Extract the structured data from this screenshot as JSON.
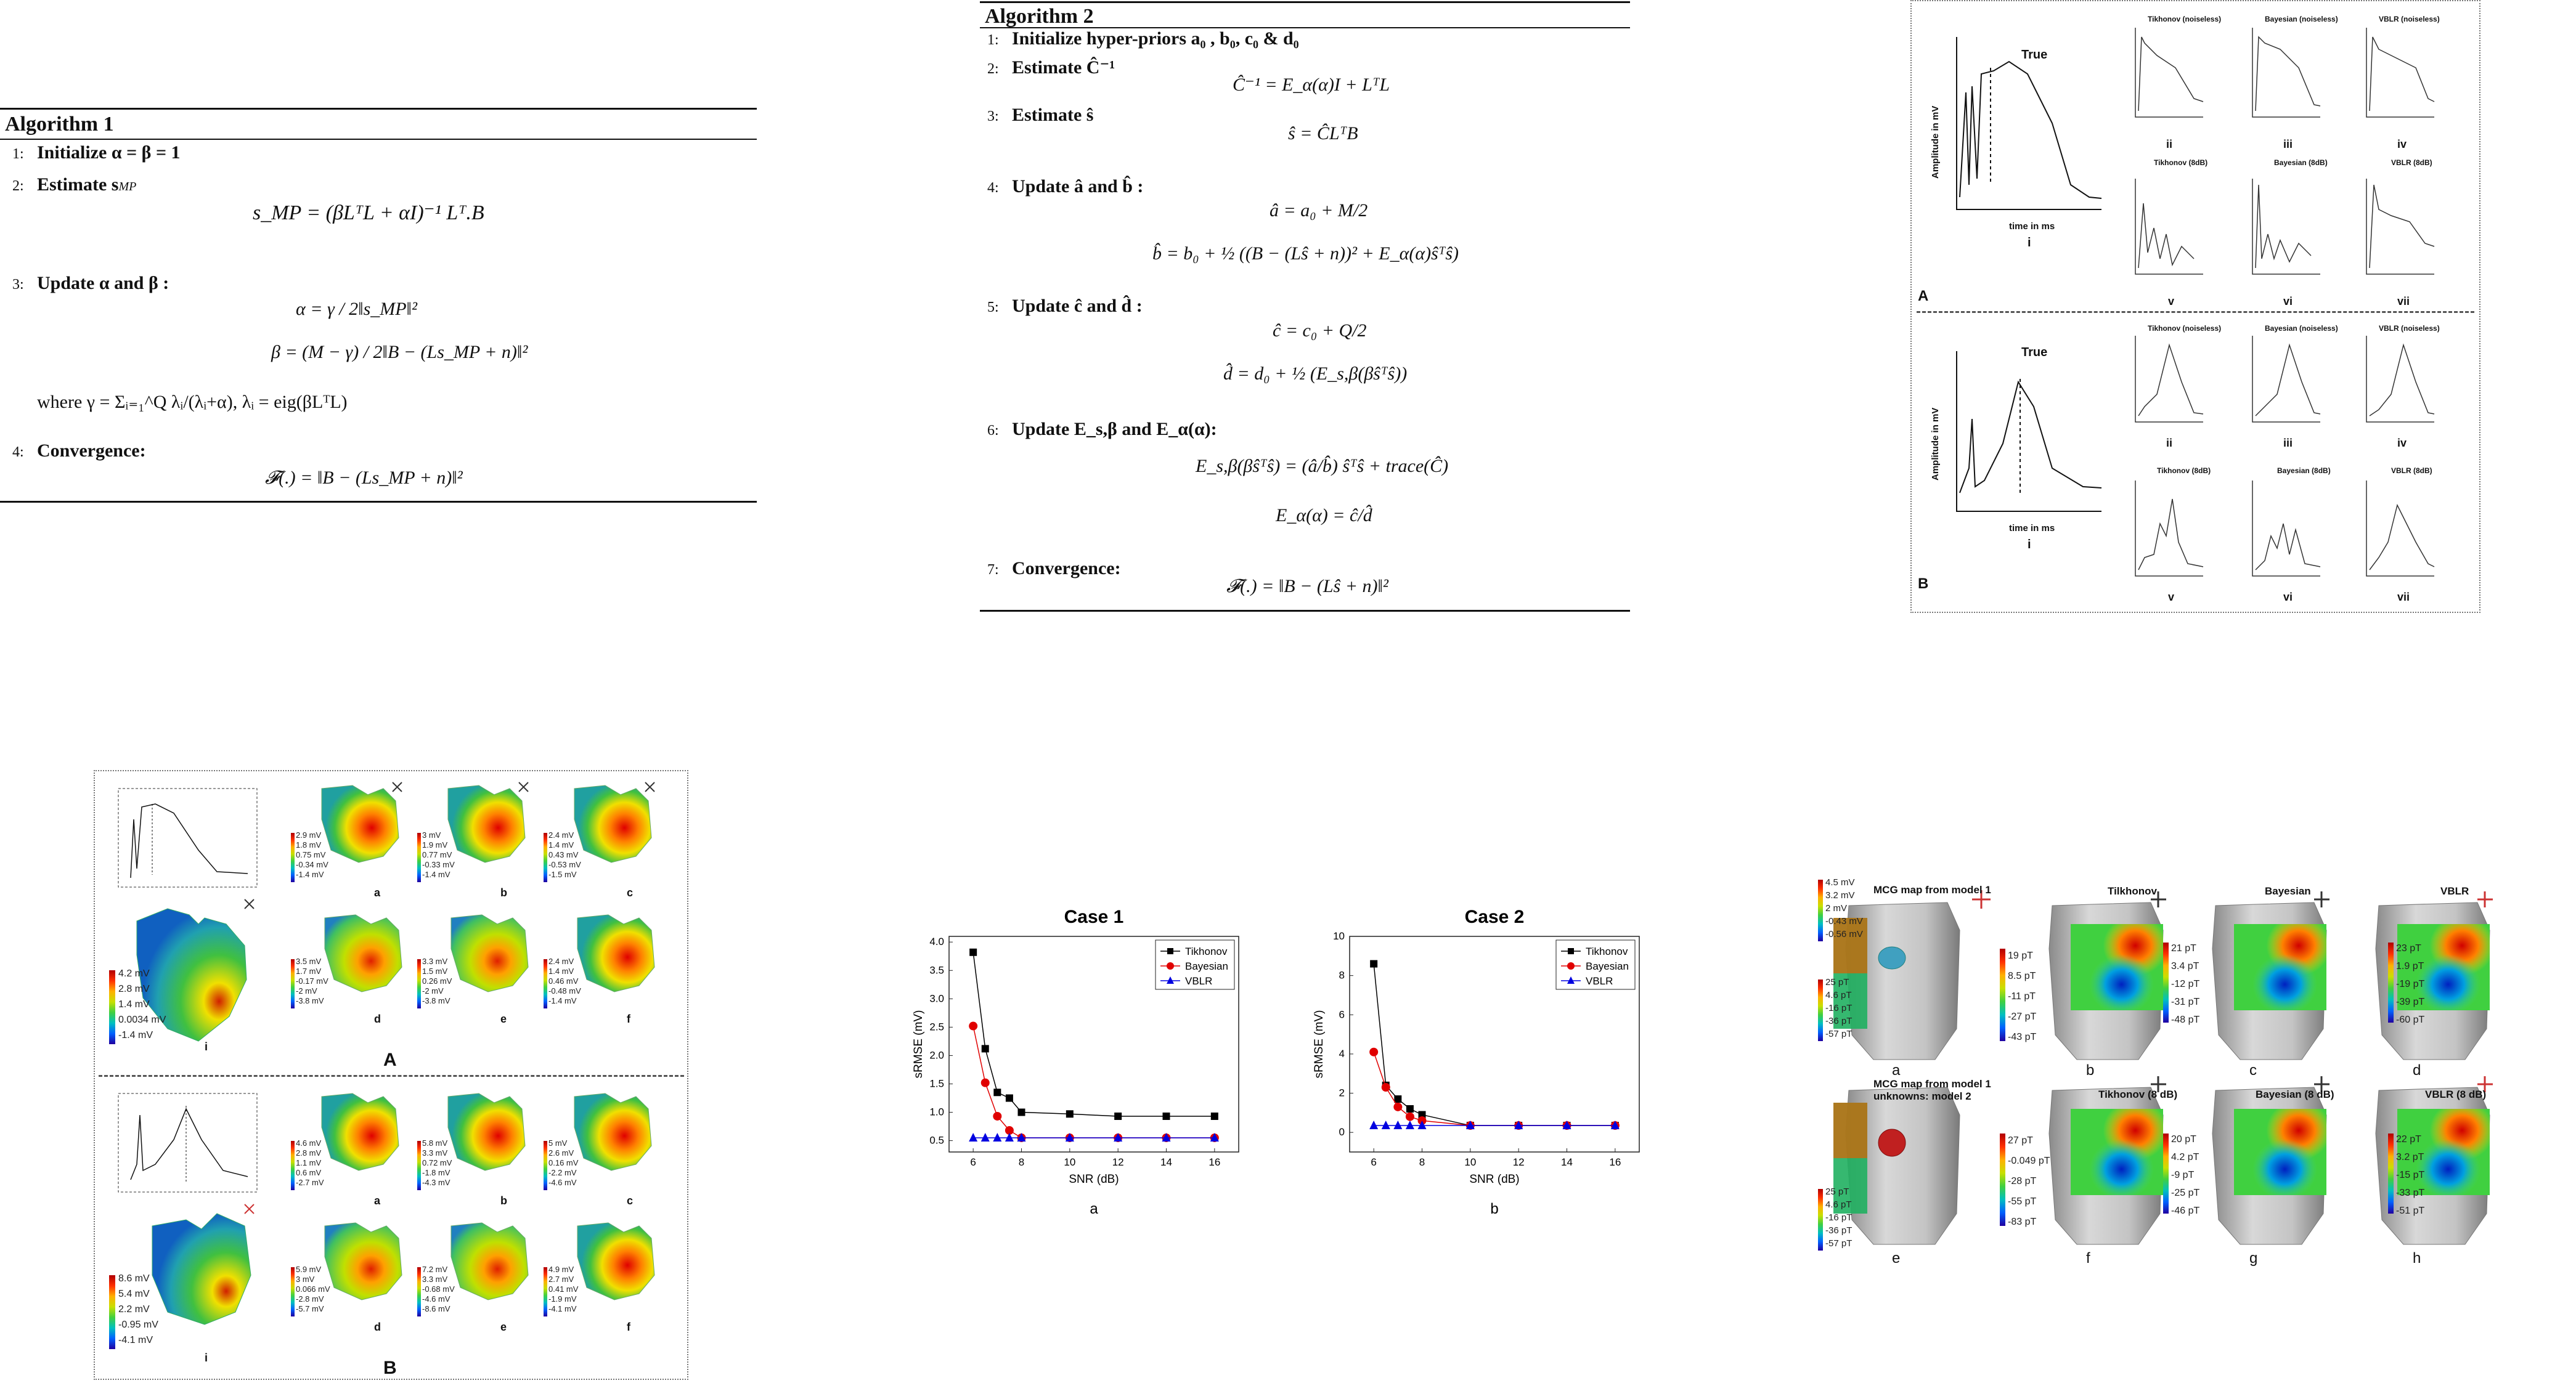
{
  "algo1": {
    "title": "Algorithm 1",
    "s1": "Initialize α = β = 1",
    "s2": "Estimate s",
    "s2sub": "MP",
    "eq2": "s_MP = (βLᵀL + αI)⁻¹ Lᵀ.B",
    "s3": "Update α and β :",
    "eq3a": "α = γ / 2‖s_MP‖²",
    "eq3b": "β = (M − γ) / 2‖B − (Ls_MP + n)‖²",
    "eq3c": "where γ = Σᵢ₌₁^Q λᵢ/(λᵢ+α), λᵢ = eig(βLᵀL)",
    "s4": "Convergence:",
    "eq4": "𝓕(.) = ‖B − (Ls_MP + n)‖²"
  },
  "algo2": {
    "title": "Algorithm 2",
    "s1": "Initialize hyper-priors a₀ , b₀, c₀ & d₀",
    "s2": "Estimate Ĉ⁻¹",
    "eq2": "Ĉ⁻¹ = E_α(α)I + LᵀL",
    "s3": "Estimate ŝ",
    "eq3": "ŝ = ĈLᵀB",
    "s4": "Update â and b̂ :",
    "eq4a": "â = a₀ + M/2",
    "eq4b": "b̂ = b₀ + ½ ((B − (Lŝ + n))² + E_α(α)ŝᵀŝ)",
    "s5": "Update ĉ and d̂ :",
    "eq5a": "ĉ = c₀ + Q/2",
    "eq5b": "d̂ = d₀ + ½ (E_s,β(βŝᵀŝ))",
    "s6": "Update E_s,β and E_α(α):",
    "eq6a": "E_s,β(βŝᵀŝ) = (â/b̂) ŝᵀŝ + trace(Ĉ)",
    "eq6b": "E_α(α) = ĉ/d̂",
    "s7": "Convergence:",
    "eq7": "𝓕(.) = ‖B − (Lŝ + n)‖²"
  },
  "waveform_fig": {
    "true_label": "True",
    "ylabel": "Amplitude in mV",
    "xlabel": "time in ms",
    "methods_row1": [
      "Tikhonov (noiseless)",
      "Bayesian (noiseless)",
      "VBLR (noiseless)"
    ],
    "methods_row2": [
      "Tikhonov (8dB)",
      "Bayesian (8dB)",
      "VBLR (8dB)"
    ],
    "roman": [
      "i",
      "ii",
      "iii",
      "iv",
      "v",
      "vi",
      "vii"
    ],
    "panel_A": "A",
    "panel_B": "B"
  },
  "heart_fig": {
    "letters": [
      "a",
      "b",
      "c",
      "d",
      "e",
      "f",
      "i"
    ],
    "panel_A": "A",
    "panel_B": "B",
    "A_i_scale": [
      "4.2 mV",
      "2.8 mV",
      "1.4 mV",
      "0.0034 mV",
      "-1.4 mV"
    ],
    "B_i_scale": [
      "8.6 mV",
      "5.4 mV",
      "2.2 mV",
      "-0.95 mV",
      "-4.1 mV"
    ],
    "A_scales": [
      [
        "2.9 mV",
        "1.8 mV",
        "0.75 mV",
        "-0.34 mV",
        "-1.4 mV"
      ],
      [
        "3 mV",
        "1.9 mV",
        "0.77 mV",
        "-0.33 mV",
        "-1.4 mV"
      ],
      [
        "2.4 mV",
        "1.4 mV",
        "0.43 mV",
        "-0.53 mV",
        "-1.5 mV"
      ],
      [
        "3.5 mV",
        "1.7 mV",
        "-0.17 mV",
        "-2 mV",
        "-3.8 mV"
      ],
      [
        "3.3 mV",
        "1.5 mV",
        "0.26 mV",
        "-2 mV",
        "-3.8 mV"
      ],
      [
        "2.4 mV",
        "1.4 mV",
        "0.46 mV",
        "-0.48 mV",
        "-1.4 mV"
      ]
    ],
    "B_scales": [
      [
        "4.6 mV",
        "2.8 mV",
        "1.1 mV",
        "0.6 mV",
        "-2.7 mV"
      ],
      [
        "5.8 mV",
        "3.3 mV",
        "0.72 mV",
        "-1.8 mV",
        "-4.3 mV"
      ],
      [
        "5 mV",
        "2.6 mV",
        "0.16 mV",
        "-2.2 mV",
        "-4.6 mV"
      ],
      [
        "5.9 mV",
        "3 mV",
        "0.066 mV",
        "-2.8 mV",
        "-5.7 mV"
      ],
      [
        "7.2 mV",
        "3.3 mV",
        "-0.68 mV",
        "-4.6 mV",
        "-8.6 mV"
      ],
      [
        "4.9 mV",
        "2.7 mV",
        "0.41 mV",
        "-1.9 mV",
        "-4.1 mV"
      ]
    ]
  },
  "chart_data": [
    {
      "type": "line",
      "title": "Case 1",
      "xlabel": "SNR (dB)",
      "ylabel": "sRMSE (mV)",
      "panel": "a",
      "x": [
        6,
        6.5,
        7,
        7.5,
        8,
        10,
        12,
        14,
        16
      ],
      "xlim": [
        5,
        17
      ],
      "ylim": [
        0.3,
        4.1
      ],
      "xticks": [
        6,
        8,
        10,
        12,
        14,
        16
      ],
      "yticks": [
        0.5,
        1.0,
        1.5,
        2.0,
        2.5,
        3.0,
        3.5,
        4.0
      ],
      "legend": "top-right",
      "series": [
        {
          "name": "Tikhonov",
          "color": "#000000",
          "marker": "square",
          "values": [
            3.82,
            2.12,
            1.35,
            1.25,
            1.0,
            0.97,
            0.93,
            0.93,
            0.93
          ]
        },
        {
          "name": "Bayesian",
          "color": "#e00000",
          "marker": "circle",
          "values": [
            2.52,
            1.52,
            0.93,
            0.68,
            0.55,
            0.55,
            0.55,
            0.55,
            0.55
          ]
        },
        {
          "name": "VBLR",
          "color": "#0000e0",
          "marker": "triangle",
          "values": [
            0.55,
            0.55,
            0.55,
            0.55,
            0.55,
            0.55,
            0.55,
            0.55,
            0.55
          ]
        }
      ]
    },
    {
      "type": "line",
      "title": "Case 2",
      "xlabel": "SNR (dB)",
      "ylabel": "sRMSE (mV)",
      "panel": "b",
      "x": [
        6,
        6.5,
        7,
        7.5,
        8,
        10,
        12,
        14,
        16
      ],
      "xlim": [
        5,
        17
      ],
      "ylim": [
        -1,
        10
      ],
      "xticks": [
        6,
        8,
        10,
        12,
        14,
        16
      ],
      "yticks": [
        0,
        2,
        4,
        6,
        8,
        10
      ],
      "legend": "top-right",
      "series": [
        {
          "name": "Tikhonov",
          "color": "#000000",
          "marker": "square",
          "values": [
            8.6,
            2.4,
            1.7,
            1.2,
            0.9,
            0.35,
            0.35,
            0.35,
            0.35
          ]
        },
        {
          "name": "Bayesian",
          "color": "#e00000",
          "marker": "circle",
          "values": [
            4.1,
            2.3,
            1.3,
            0.8,
            0.6,
            0.35,
            0.35,
            0.35,
            0.35
          ]
        },
        {
          "name": "VBLR",
          "color": "#0000e0",
          "marker": "triangle",
          "values": [
            0.35,
            0.35,
            0.35,
            0.35,
            0.35,
            0.35,
            0.35,
            0.35,
            0.35
          ]
        }
      ]
    }
  ],
  "mcg_fig": {
    "title1": "MCG map from model 1",
    "title2a": "MCG map from model 1",
    "title2b": "unknowns: model 2",
    "row1_heads": [
      "Tilkhonov",
      "Bayesian",
      "VBLR"
    ],
    "row2_heads": [
      "Tikhonov (8 dB)",
      "Bayesian (8 dB)",
      "VBLR (8 dB)"
    ],
    "letters": [
      "a",
      "b",
      "c",
      "d",
      "e",
      "f",
      "g",
      "h"
    ],
    "a_mv": [
      "4.5 mV",
      "3.2 mV",
      "2 mV",
      "-0.43 mV",
      "-0.56 mV"
    ],
    "a_pt": [
      "25 pT",
      "4.6 pT",
      "-16 pT",
      "-36 pT",
      "-57 pT"
    ],
    "e_pt": [
      "25 pT",
      "4.6 pT",
      "-16 pT",
      "-36 pT",
      "-57 pT"
    ],
    "b": [
      "19 pT",
      "8.5 pT",
      "-11 pT",
      "-27 pT",
      "-43 pT"
    ],
    "c": [
      "21 pT",
      "3.4 pT",
      "-12 pT",
      "-31 pT",
      "-48 pT"
    ],
    "d": [
      "23 pT",
      "1.9 pT",
      "-19 pT",
      "-39 pT",
      "-60 pT"
    ],
    "f": [
      "27 pT",
      "-0.049 pT",
      "-28 pT",
      "-55 pT",
      "-83 pT"
    ],
    "g": [
      "20 pT",
      "4.2 pT",
      "-9 pT",
      "-25 pT",
      "-46 pT"
    ],
    "h": [
      "22 pT",
      "3.2 pT",
      "-15 pT",
      "-33 pT",
      "-51 pT"
    ]
  }
}
